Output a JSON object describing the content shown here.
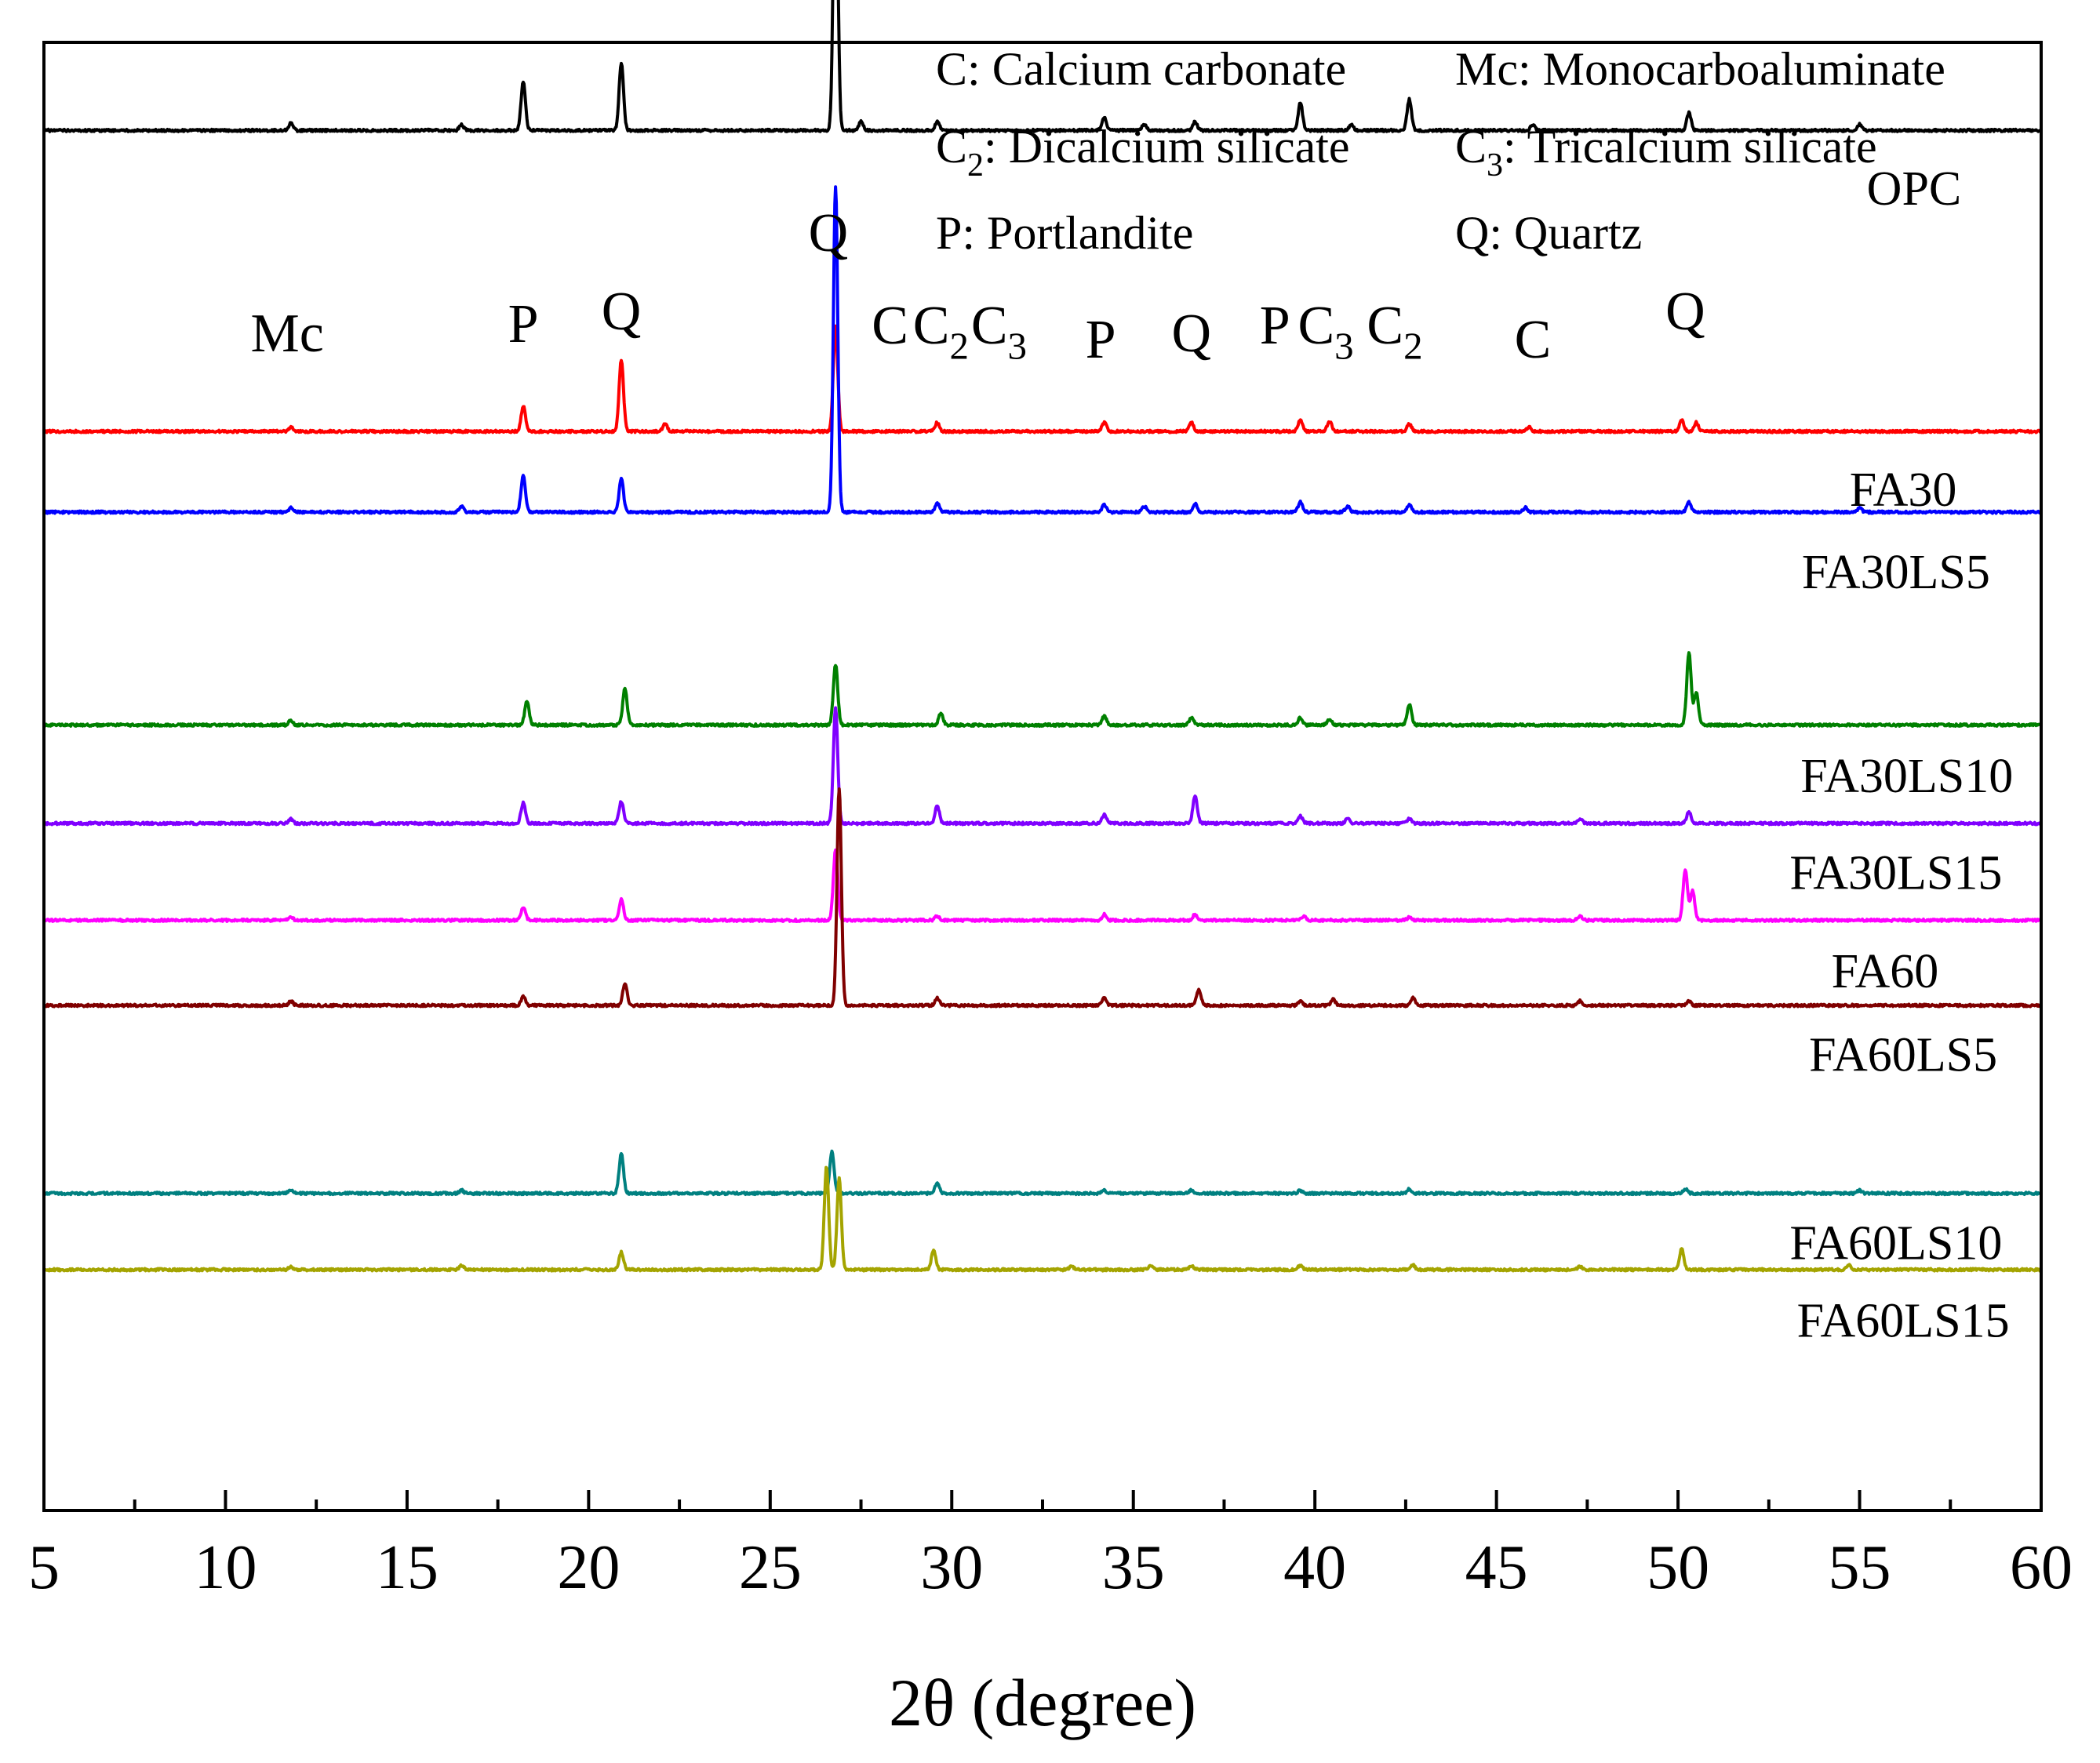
{
  "chart_data": {
    "type": "line",
    "title": "",
    "xlabel": "2θ (degree)",
    "ylabel": "",
    "xlim": [
      5,
      60
    ],
    "x_ticks": [
      5,
      10,
      15,
      20,
      25,
      30,
      35,
      40,
      45,
      50,
      55,
      60
    ],
    "legend": [
      {
        "symbol": "C",
        "sub": "",
        "text": ": Calcium carbonate"
      },
      {
        "symbol": "Mc",
        "sub": "",
        "text": ": Monocarboaluminate"
      },
      {
        "symbol": "C",
        "sub": "2",
        "text": ": Dicalcium silicate"
      },
      {
        "symbol": "C",
        "sub": "3",
        "text": ": Tricalcium silicate"
      },
      {
        "symbol": "P",
        "sub": "",
        "text": ": Portlandite"
      },
      {
        "symbol": "Q",
        "sub": "",
        "text": ": Quartz"
      }
    ],
    "peak_annotations": [
      {
        "label": "Mc",
        "x": 11.7
      },
      {
        "label": "P",
        "x": 18.2
      },
      {
        "label": "Q",
        "x": 20.9
      },
      {
        "label": "Q",
        "x": 26.6
      },
      {
        "label": "C",
        "x": 28.3
      },
      {
        "label": "C",
        "sub": "2",
        "x": 29.7
      },
      {
        "label": "C",
        "sub": "3",
        "x": 31.3
      },
      {
        "label": "P",
        "x": 34.1
      },
      {
        "label": "Q",
        "x": 36.6
      },
      {
        "label": "P",
        "x": 38.9
      },
      {
        "label": "C",
        "sub": "3",
        "x": 40.3
      },
      {
        "label": "C",
        "sub": "2",
        "x": 42.2
      },
      {
        "label": "C",
        "x": 46.0
      },
      {
        "label": "Q",
        "x": 50.2
      }
    ],
    "series": [
      {
        "name": "OPC",
        "color": "#000000",
        "baseline": 0.06,
        "label_x": 56.5,
        "label_offset": -0.04,
        "peaks": [
          [
            11.8,
            0.005
          ],
          [
            16.5,
            0.004
          ],
          [
            18.2,
            0.033
          ],
          [
            20.9,
            0.046
          ],
          [
            26.8,
            0.214
          ],
          [
            27.5,
            0.006
          ],
          [
            29.6,
            0.006
          ],
          [
            34.2,
            0.009
          ],
          [
            35.3,
            0.004
          ],
          [
            36.7,
            0.006
          ],
          [
            39.6,
            0.019
          ],
          [
            41.0,
            0.004
          ],
          [
            42.6,
            0.021
          ],
          [
            46.0,
            0.004
          ],
          [
            50.3,
            0.012
          ],
          [
            55.0,
            0.004
          ]
        ]
      },
      {
        "name": "FA30",
        "color": "#ff0000",
        "baseline": 0.265,
        "label_x": 56.2,
        "label_offset": -0.04,
        "peaks": [
          [
            11.8,
            0.003
          ],
          [
            18.2,
            0.017
          ],
          [
            20.9,
            0.049
          ],
          [
            22.1,
            0.005
          ],
          [
            26.8,
            0.072
          ],
          [
            29.6,
            0.006
          ],
          [
            34.2,
            0.006
          ],
          [
            36.6,
            0.006
          ],
          [
            39.6,
            0.008
          ],
          [
            40.4,
            0.007
          ],
          [
            42.6,
            0.005
          ],
          [
            45.9,
            0.003
          ],
          [
            50.1,
            0.008
          ],
          [
            50.5,
            0.006
          ]
        ]
      },
      {
        "name": "FA30LS5",
        "color": "#0000ff",
        "baseline": 0.32,
        "label_x": 56.0,
        "label_offset": -0.041,
        "peaks": [
          [
            11.8,
            0.003
          ],
          [
            16.5,
            0.004
          ],
          [
            18.2,
            0.025
          ],
          [
            20.9,
            0.023
          ],
          [
            26.8,
            0.222
          ],
          [
            29.6,
            0.006
          ],
          [
            34.2,
            0.005
          ],
          [
            35.3,
            0.004
          ],
          [
            36.7,
            0.006
          ],
          [
            39.6,
            0.007
          ],
          [
            40.9,
            0.004
          ],
          [
            42.6,
            0.005
          ],
          [
            45.8,
            0.003
          ],
          [
            50.3,
            0.007
          ],
          [
            55.0,
            0.003
          ]
        ]
      },
      {
        "name": "FA30LS10",
        "color": "#008000",
        "baseline": 0.465,
        "label_x": 56.3,
        "label_offset": -0.035,
        "peaks": [
          [
            11.8,
            0.003
          ],
          [
            18.3,
            0.016
          ],
          [
            21.0,
            0.025
          ],
          [
            26.8,
            0.041
          ],
          [
            29.7,
            0.008
          ],
          [
            34.2,
            0.006
          ],
          [
            36.6,
            0.005
          ],
          [
            39.6,
            0.005
          ],
          [
            40.4,
            0.004
          ],
          [
            42.6,
            0.014
          ],
          [
            50.3,
            0.049
          ],
          [
            50.5,
            0.022
          ]
        ]
      },
      {
        "name": "FA30LS15",
        "color": "#8000ff",
        "baseline": 0.532,
        "label_x": 56.0,
        "label_offset": -0.034,
        "peaks": [
          [
            11.8,
            0.003
          ],
          [
            18.2,
            0.014
          ],
          [
            20.9,
            0.015
          ],
          [
            26.8,
            0.078
          ],
          [
            29.6,
            0.012
          ],
          [
            34.2,
            0.006
          ],
          [
            36.7,
            0.019
          ],
          [
            39.6,
            0.005
          ],
          [
            40.9,
            0.003
          ],
          [
            42.6,
            0.003
          ],
          [
            47.3,
            0.003
          ],
          [
            50.3,
            0.008
          ]
        ]
      },
      {
        "name": "FA60",
        "color": "#ff00ff",
        "baseline": 0.598,
        "label_x": 55.7,
        "label_offset": -0.035,
        "peaks": [
          [
            11.8,
            0.002
          ],
          [
            18.2,
            0.009
          ],
          [
            20.9,
            0.014
          ],
          [
            26.8,
            0.048
          ],
          [
            29.6,
            0.003
          ],
          [
            34.2,
            0.004
          ],
          [
            36.7,
            0.004
          ],
          [
            39.7,
            0.003
          ],
          [
            42.6,
            0.002
          ],
          [
            47.3,
            0.003
          ],
          [
            50.2,
            0.034
          ],
          [
            50.4,
            0.02
          ]
        ]
      },
      {
        "name": "FA60LS5",
        "color": "#800000",
        "baseline": 0.656,
        "label_x": 56.2,
        "label_offset": -0.034,
        "peaks": [
          [
            11.8,
            0.003
          ],
          [
            18.2,
            0.006
          ],
          [
            21.0,
            0.015
          ],
          [
            26.9,
            0.148
          ],
          [
            29.6,
            0.005
          ],
          [
            34.2,
            0.005
          ],
          [
            36.8,
            0.011
          ],
          [
            39.6,
            0.003
          ],
          [
            40.5,
            0.004
          ],
          [
            42.7,
            0.005
          ],
          [
            47.3,
            0.003
          ],
          [
            50.3,
            0.003
          ]
        ]
      },
      {
        "name": "FA60LS10",
        "color": "#008080",
        "baseline": 0.784,
        "label_x": 56.0,
        "label_offset": -0.034,
        "peaks": [
          [
            11.8,
            0.002
          ],
          [
            16.5,
            0.002
          ],
          [
            20.9,
            0.027
          ],
          [
            26.7,
            0.028
          ],
          [
            29.6,
            0.007
          ],
          [
            34.2,
            0.002
          ],
          [
            36.6,
            0.002
          ],
          [
            39.6,
            0.002
          ],
          [
            42.6,
            0.003
          ],
          [
            50.2,
            0.003
          ],
          [
            55.0,
            0.002
          ]
        ]
      },
      {
        "name": "FA60LS15",
        "color": "#a4a400",
        "baseline": 0.836,
        "label_x": 56.2,
        "label_offset": -0.035,
        "peaks": [
          [
            11.8,
            0.002
          ],
          [
            16.5,
            0.003
          ],
          [
            20.9,
            0.012
          ],
          [
            26.55,
            0.07
          ],
          [
            26.9,
            0.062
          ],
          [
            29.5,
            0.013
          ],
          [
            33.3,
            0.002
          ],
          [
            35.5,
            0.003
          ],
          [
            36.6,
            0.003
          ],
          [
            39.6,
            0.003
          ],
          [
            42.7,
            0.003
          ],
          [
            47.3,
            0.002
          ],
          [
            50.1,
            0.014
          ],
          [
            54.7,
            0.003
          ]
        ]
      }
    ]
  }
}
